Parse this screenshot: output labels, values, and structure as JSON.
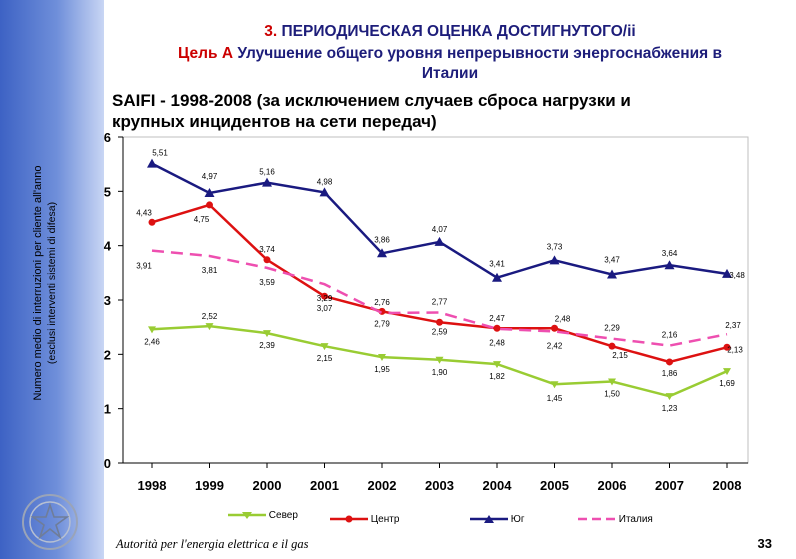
{
  "header": {
    "line1_accent": "3.",
    "line1_text": " ПЕРИОДИЧЕСКАЯ ОЦЕНКА ДОСТИГНУТОГО/ii",
    "line2_accent": "Цель А",
    "line2_text": " Улучшение общего уровня непрерывности энергоснабжения в",
    "line3_text": "Италии"
  },
  "chart_title_line1": "SAIFI - 1998-2008 (за исключением случаев сброса нагрузки и",
  "chart_title_line2": "крупных инцидентов на сети передач)",
  "ylabel_line1": "Numero medio di interruzioni per cliente all'anno",
  "ylabel_line2": "(esclusi interventi sistemi di difesa)",
  "footer": {
    "text": "Autorità per l'energia elettrica e il gas",
    "page": "33"
  },
  "colors": {
    "north": "#99cc33",
    "center": "#dd1111",
    "south": "#1a1a80",
    "italy": "#ee4fb0"
  },
  "chart_data": {
    "type": "line",
    "x": [
      "1998",
      "1999",
      "2000",
      "2001",
      "2002",
      "2003",
      "2004",
      "2005",
      "2006",
      "2007",
      "2008"
    ],
    "ylim": [
      0,
      6
    ],
    "yticks": [
      "0",
      "1",
      "2",
      "3",
      "4",
      "5",
      "6"
    ],
    "series": [
      {
        "name": "Север",
        "key": "north",
        "values": [
          2.46,
          2.52,
          2.39,
          2.15,
          1.95,
          1.9,
          1.82,
          1.45,
          1.5,
          1.23,
          1.69
        ],
        "labels": [
          "2,46",
          "2,52",
          "2,39",
          "2,15",
          "1,95",
          "1,90",
          "1,82",
          "1,45",
          "1,50",
          "1,23",
          "1,69"
        ]
      },
      {
        "name": "Центр",
        "key": "center",
        "values": [
          4.43,
          4.75,
          3.74,
          3.07,
          2.79,
          2.59,
          2.48,
          2.48,
          2.15,
          1.86,
          2.13
        ],
        "labels": [
          "4,43",
          "4,75",
          "3,74",
          "3,07",
          "2,79",
          "2,59",
          "2,48",
          "2,48",
          "2,15",
          "1,86",
          "2,13"
        ]
      },
      {
        "name": "Юг",
        "key": "south",
        "values": [
          5.51,
          4.97,
          5.16,
          4.98,
          3.86,
          4.07,
          3.41,
          3.73,
          3.47,
          3.64,
          3.48
        ],
        "labels": [
          "5,51",
          "4,97",
          "5,16",
          "4,98",
          "3,86",
          "4,07",
          "3,41",
          "3,73",
          "3,47",
          "3,64",
          "3,48"
        ]
      },
      {
        "name": "Италия",
        "key": "italy",
        "values": [
          3.91,
          3.81,
          3.59,
          3.29,
          2.76,
          2.77,
          2.47,
          2.42,
          2.29,
          2.16,
          2.37
        ],
        "labels": [
          "3,91",
          "3,81",
          "3,59",
          "3,29",
          "2,76",
          "2,77",
          "2,47",
          "2,42",
          "2,29",
          "2,16",
          "2,37"
        ]
      }
    ]
  }
}
